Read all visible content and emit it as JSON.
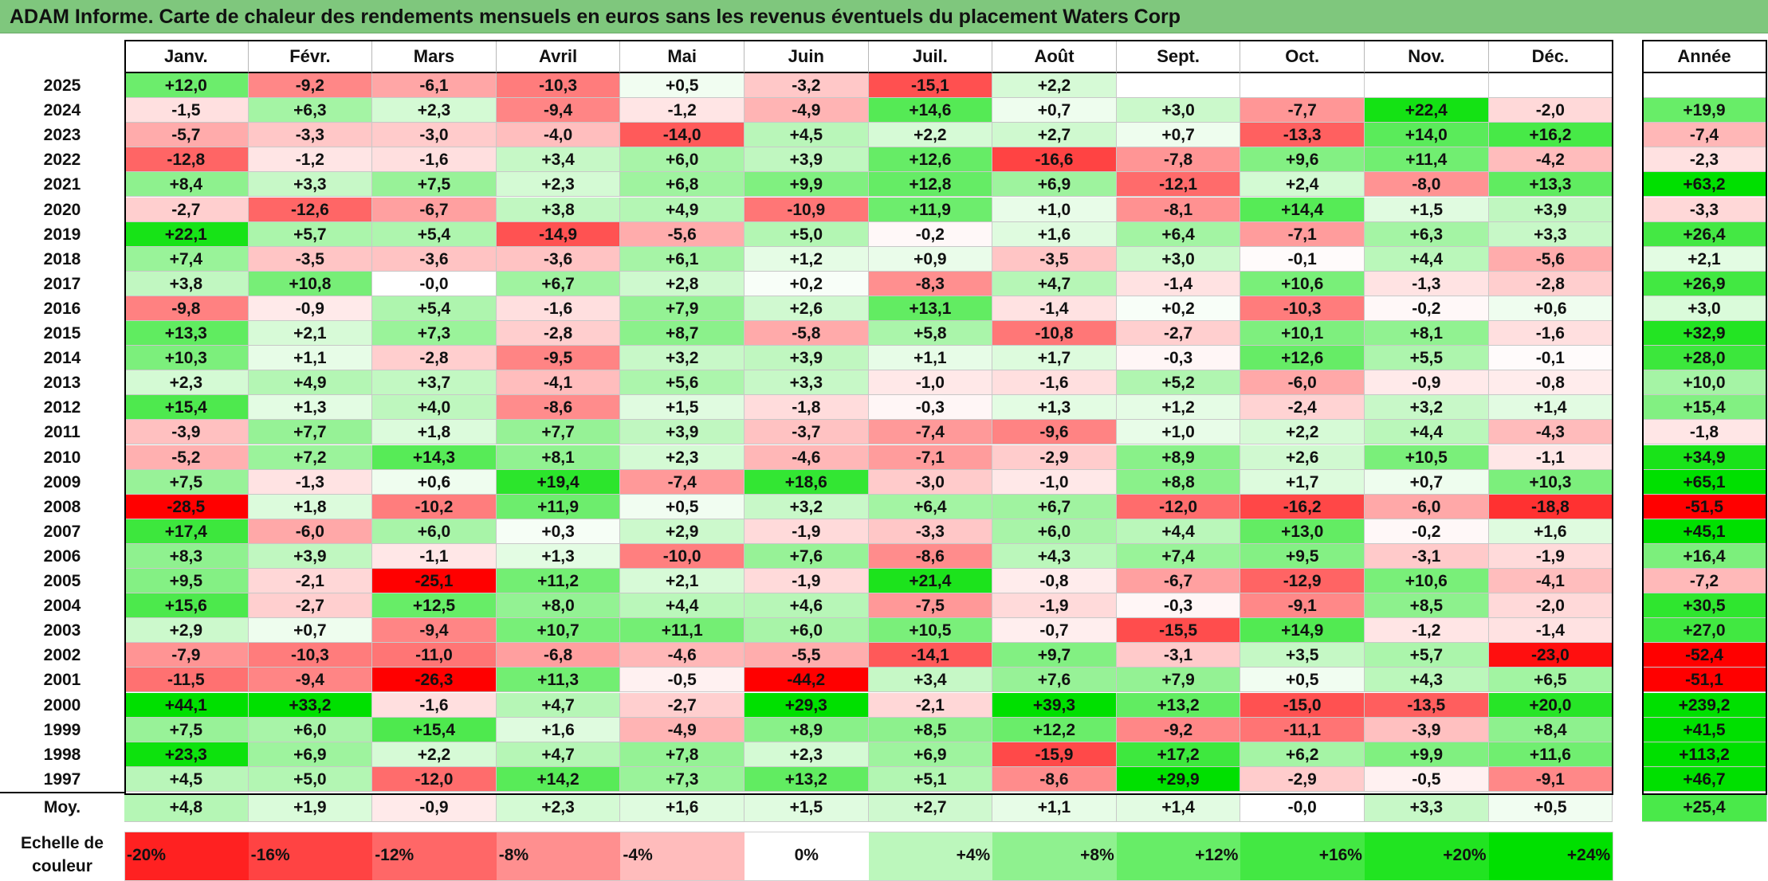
{
  "title": "ADAM Informe. Carte de chaleur des rendements mensuels en euros sans les revenus éventuels du placement Waters Corp",
  "chart_data": {
    "type": "heatmap",
    "title": "ADAM Informe. Carte de chaleur des rendements mensuels en euros sans les revenus éventuels du placement Waters Corp",
    "months": [
      "Janv.",
      "Févr.",
      "Mars",
      "Avril",
      "Mai",
      "Juin",
      "Juil.",
      "Août",
      "Sept.",
      "Oct.",
      "Nov.",
      "Déc."
    ],
    "annual_header": "Année",
    "rows": [
      {
        "year": "2025",
        "values": [
          "+12,0",
          "-9,2",
          "-6,1",
          "-10,3",
          "+0,5",
          "-3,2",
          "-15,1",
          "+2,2",
          "",
          "",
          "",
          ""
        ],
        "annual": ""
      },
      {
        "year": "2024",
        "values": [
          "-1,5",
          "+6,3",
          "+2,3",
          "-9,4",
          "-1,2",
          "-4,9",
          "+14,6",
          "+0,7",
          "+3,0",
          "-7,7",
          "+22,4",
          "-2,0"
        ],
        "annual": "+19,9"
      },
      {
        "year": "2023",
        "values": [
          "-5,7",
          "-3,3",
          "-3,0",
          "-4,0",
          "-14,0",
          "+4,5",
          "+2,2",
          "+2,7",
          "+0,7",
          "-13,3",
          "+14,0",
          "+16,2"
        ],
        "annual": "-7,4"
      },
      {
        "year": "2022",
        "values": [
          "-12,8",
          "-1,2",
          "-1,6",
          "+3,4",
          "+6,0",
          "+3,9",
          "+12,6",
          "-16,6",
          "-7,8",
          "+9,6",
          "+11,4",
          "-4,2"
        ],
        "annual": "-2,3"
      },
      {
        "year": "2021",
        "values": [
          "+8,4",
          "+3,3",
          "+7,5",
          "+2,3",
          "+6,8",
          "+9,9",
          "+12,8",
          "+6,9",
          "-12,1",
          "+2,4",
          "-8,0",
          "+13,3"
        ],
        "annual": "+63,2"
      },
      {
        "year": "2020",
        "values": [
          "-2,7",
          "-12,6",
          "-6,7",
          "+3,8",
          "+4,9",
          "-10,9",
          "+11,9",
          "+1,0",
          "-8,1",
          "+14,4",
          "+1,5",
          "+3,9"
        ],
        "annual": "-3,3"
      },
      {
        "year": "2019",
        "values": [
          "+22,1",
          "+5,7",
          "+5,4",
          "-14,9",
          "-5,6",
          "+5,0",
          "-0,2",
          "+1,6",
          "+6,4",
          "-7,1",
          "+6,3",
          "+3,3"
        ],
        "annual": "+26,4"
      },
      {
        "year": "2018",
        "values": [
          "+7,4",
          "-3,5",
          "-3,6",
          "-3,6",
          "+6,1",
          "+1,2",
          "+0,9",
          "-3,5",
          "+3,0",
          "-0,1",
          "+4,4",
          "-5,6"
        ],
        "annual": "+2,1"
      },
      {
        "year": "2017",
        "values": [
          "+3,8",
          "+10,8",
          "-0,0",
          "+6,7",
          "+2,8",
          "+0,2",
          "-8,3",
          "+4,7",
          "-1,4",
          "+10,6",
          "-1,3",
          "-2,8"
        ],
        "annual": "+26,9"
      },
      {
        "year": "2016",
        "values": [
          "-9,8",
          "-0,9",
          "+5,4",
          "-1,6",
          "+7,9",
          "+2,6",
          "+13,1",
          "-1,4",
          "+0,2",
          "-10,3",
          "-0,2",
          "+0,6"
        ],
        "annual": "+3,0"
      },
      {
        "year": "2015",
        "values": [
          "+13,3",
          "+2,1",
          "+7,3",
          "-2,8",
          "+8,7",
          "-5,8",
          "+5,8",
          "-10,8",
          "-2,7",
          "+10,1",
          "+8,1",
          "-1,6"
        ],
        "annual": "+32,9"
      },
      {
        "year": "2014",
        "values": [
          "+10,3",
          "+1,1",
          "-2,8",
          "-9,5",
          "+3,2",
          "+3,9",
          "+1,1",
          "+1,7",
          "-0,3",
          "+12,6",
          "+5,5",
          "-0,1"
        ],
        "annual": "+28,0"
      },
      {
        "year": "2013",
        "values": [
          "+2,3",
          "+4,9",
          "+3,7",
          "-4,1",
          "+5,6",
          "+3,3",
          "-1,0",
          "-1,6",
          "+5,2",
          "-6,0",
          "-0,9",
          "-0,8"
        ],
        "annual": "+10,0"
      },
      {
        "year": "2012",
        "values": [
          "+15,4",
          "+1,3",
          "+4,0",
          "-8,6",
          "+1,5",
          "-1,8",
          "-0,3",
          "+1,3",
          "+1,2",
          "-2,4",
          "+3,2",
          "+1,4"
        ],
        "annual": "+15,4"
      },
      {
        "year": "2011",
        "values": [
          "-3,9",
          "+7,7",
          "+1,8",
          "+7,7",
          "+3,9",
          "-3,7",
          "-7,4",
          "-9,6",
          "+1,0",
          "+2,2",
          "+4,4",
          "-4,3"
        ],
        "annual": "-1,8"
      },
      {
        "year": "2010",
        "values": [
          "-5,2",
          "+7,2",
          "+14,3",
          "+8,1",
          "+2,3",
          "-4,6",
          "-7,1",
          "-2,9",
          "+8,9",
          "+2,6",
          "+10,5",
          "-1,1"
        ],
        "annual": "+34,9"
      },
      {
        "year": "2009",
        "values": [
          "+7,5",
          "-1,3",
          "+0,6",
          "+19,4",
          "-7,4",
          "+18,6",
          "-3,0",
          "-1,0",
          "+8,8",
          "+1,7",
          "+0,7",
          "+10,3"
        ],
        "annual": "+65,1"
      },
      {
        "year": "2008",
        "values": [
          "-28,5",
          "+1,8",
          "-10,2",
          "+11,9",
          "+0,5",
          "+3,2",
          "+6,4",
          "+6,7",
          "-12,0",
          "-16,2",
          "-6,0",
          "-18,8"
        ],
        "annual": "-51,5"
      },
      {
        "year": "2007",
        "values": [
          "+17,4",
          "-6,0",
          "+6,0",
          "+0,3",
          "+2,9",
          "-1,9",
          "-3,3",
          "+6,0",
          "+4,4",
          "+13,0",
          "-0,2",
          "+1,6"
        ],
        "annual": "+45,1"
      },
      {
        "year": "2006",
        "values": [
          "+8,3",
          "+3,9",
          "-1,1",
          "+1,3",
          "-10,0",
          "+7,6",
          "-8,6",
          "+4,3",
          "+7,4",
          "+9,5",
          "-3,1",
          "-1,9"
        ],
        "annual": "+16,4"
      },
      {
        "year": "2005",
        "values": [
          "+9,5",
          "-2,1",
          "-25,1",
          "+11,2",
          "+2,1",
          "-1,9",
          "+21,4",
          "-0,8",
          "-6,7",
          "-12,9",
          "+10,6",
          "-4,1"
        ],
        "annual": "-7,2"
      },
      {
        "year": "2004",
        "values": [
          "+15,6",
          "-2,7",
          "+12,5",
          "+8,0",
          "+4,4",
          "+4,6",
          "-7,5",
          "-1,9",
          "-0,3",
          "-9,1",
          "+8,5",
          "-2,0"
        ],
        "annual": "+30,5"
      },
      {
        "year": "2003",
        "values": [
          "+2,9",
          "+0,7",
          "-9,4",
          "+10,7",
          "+11,1",
          "+6,0",
          "+10,5",
          "-0,7",
          "-15,5",
          "+14,9",
          "-1,2",
          "-1,4"
        ],
        "annual": "+27,0"
      },
      {
        "year": "2002",
        "values": [
          "-7,9",
          "-10,3",
          "-11,0",
          "-6,8",
          "-4,6",
          "-5,5",
          "-14,1",
          "+9,7",
          "-3,1",
          "+3,5",
          "+5,7",
          "-23,0"
        ],
        "annual": "-52,4"
      },
      {
        "year": "2001",
        "values": [
          "-11,5",
          "-9,4",
          "-26,3",
          "+11,3",
          "-0,5",
          "-44,2",
          "+3,4",
          "+7,6",
          "+7,9",
          "+0,5",
          "+4,3",
          "+6,5"
        ],
        "annual": "-51,1"
      },
      {
        "year": "2000",
        "values": [
          "+44,1",
          "+33,2",
          "-1,6",
          "+4,7",
          "-2,7",
          "+29,3",
          "-2,1",
          "+39,3",
          "+13,2",
          "-15,0",
          "-13,5",
          "+20,0"
        ],
        "annual": "+239,2"
      },
      {
        "year": "1999",
        "values": [
          "+7,5",
          "+6,0",
          "+15,4",
          "+1,6",
          "-4,9",
          "+8,9",
          "+8,5",
          "+12,2",
          "-9,2",
          "-11,1",
          "-3,9",
          "+8,4"
        ],
        "annual": "+41,5"
      },
      {
        "year": "1998",
        "values": [
          "+23,3",
          "+6,9",
          "+2,2",
          "+4,7",
          "+7,8",
          "+2,3",
          "+6,9",
          "-15,9",
          "+17,2",
          "+6,2",
          "+9,9",
          "+11,6"
        ],
        "annual": "+113,2"
      },
      {
        "year": "1997",
        "values": [
          "+4,5",
          "+5,0",
          "-12,0",
          "+14,2",
          "+7,3",
          "+13,2",
          "+5,1",
          "-8,6",
          "+29,9",
          "-2,9",
          "-0,5",
          "-9,1"
        ],
        "annual": "+46,7"
      }
    ],
    "average": {
      "label": "Moy.",
      "values": [
        "+4,8",
        "+1,9",
        "-0,9",
        "+2,3",
        "+1,6",
        "+1,5",
        "+2,7",
        "+1,1",
        "+1,4",
        "-0,0",
        "+3,3",
        "+0,5"
      ],
      "annual": "+25,4"
    },
    "color_scale": {
      "label_line1": "Echelle de",
      "label_line2": "couleur",
      "steps": [
        "-20%",
        "-16%",
        "-12%",
        "-8%",
        "-4%",
        "0%",
        "+4%",
        "+8%",
        "+12%",
        "+16%",
        "+20%",
        "+24%"
      ],
      "negative_color": "#ff0000",
      "neutral_color": "#ffffff",
      "positive_color": "#00e000"
    }
  }
}
